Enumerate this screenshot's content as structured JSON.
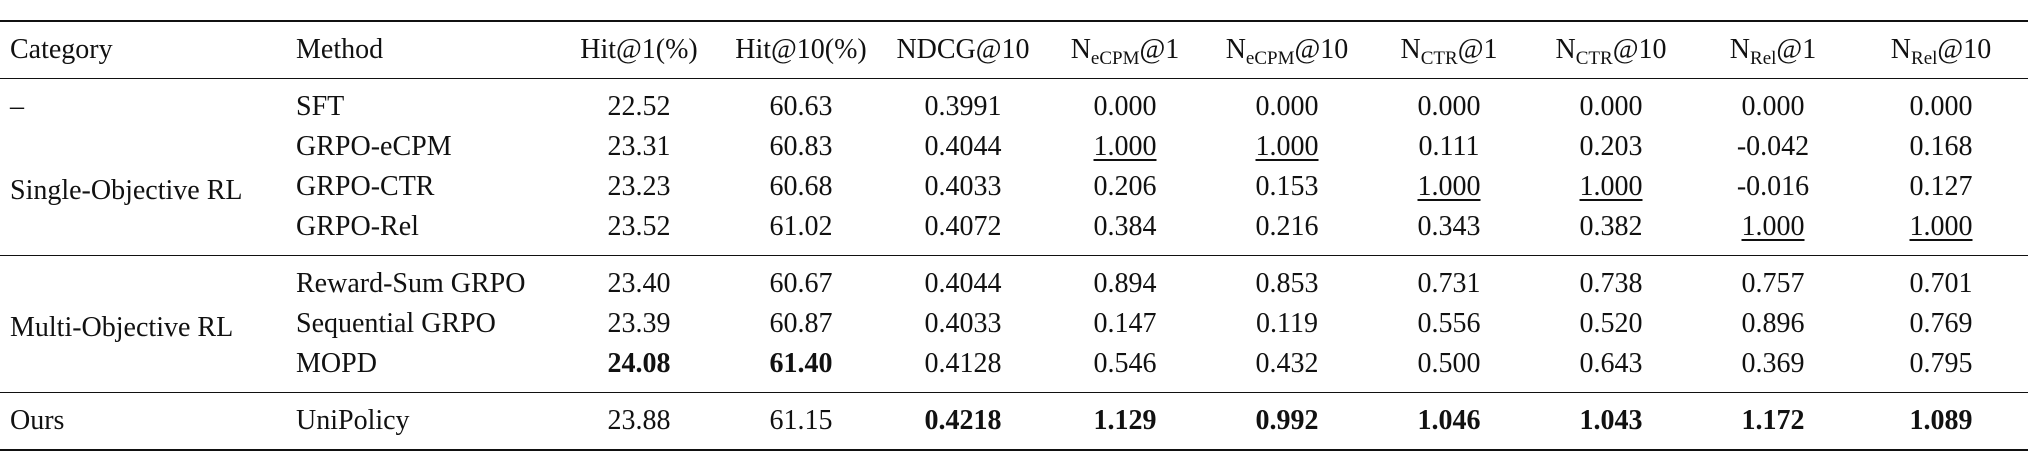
{
  "headers": {
    "category": "Category",
    "method": "Method",
    "hit1": "Hit@1(%)",
    "hit10": "Hit@10(%)",
    "ndcg10": "NDCG@10",
    "n_ecpm1": {
      "base": "N",
      "sub": "eCPM",
      "suffix": "@1"
    },
    "n_ecpm10": {
      "base": "N",
      "sub": "eCPM",
      "suffix": "@10"
    },
    "n_ctr1": {
      "base": "N",
      "sub": "CTR",
      "suffix": "@1"
    },
    "n_ctr10": {
      "base": "N",
      "sub": "CTR",
      "suffix": "@10"
    },
    "n_rel1": {
      "base": "N",
      "sub": "Rel",
      "suffix": "@1"
    },
    "n_rel10": {
      "base": "N",
      "sub": "Rel",
      "suffix": "@10"
    }
  },
  "categories": {
    "none": "–",
    "single": "Single-Objective RL",
    "multi": "Multi-Objective RL",
    "ours": "Ours"
  },
  "rows": [
    {
      "method": "SFT",
      "values": [
        "22.52",
        "60.63",
        "0.3991",
        "0.000",
        "0.000",
        "0.000",
        "0.000",
        "0.000",
        "0.000"
      ]
    },
    {
      "method": "GRPO-eCPM",
      "values": [
        "23.31",
        "60.83",
        "0.4044",
        "1.000",
        "1.000",
        "0.111",
        "0.203",
        "-0.042",
        "0.168"
      ]
    },
    {
      "method": "GRPO-CTR",
      "values": [
        "23.23",
        "60.68",
        "0.4033",
        "0.206",
        "0.153",
        "1.000",
        "1.000",
        "-0.016",
        "0.127"
      ]
    },
    {
      "method": "GRPO-Rel",
      "values": [
        "23.52",
        "61.02",
        "0.4072",
        "0.384",
        "0.216",
        "0.343",
        "0.382",
        "1.000",
        "1.000"
      ]
    },
    {
      "method": "Reward-Sum GRPO",
      "values": [
        "23.40",
        "60.67",
        "0.4044",
        "0.894",
        "0.853",
        "0.731",
        "0.738",
        "0.757",
        "0.701"
      ]
    },
    {
      "method": "Sequential GRPO",
      "values": [
        "23.39",
        "60.87",
        "0.4033",
        "0.147",
        "0.119",
        "0.556",
        "0.520",
        "0.896",
        "0.769"
      ]
    },
    {
      "method": "MOPD",
      "values": [
        "24.08",
        "61.40",
        "0.4128",
        "0.546",
        "0.432",
        "0.500",
        "0.643",
        "0.369",
        "0.795"
      ]
    },
    {
      "method": "UniPolicy",
      "values": [
        "23.88",
        "61.15",
        "0.4218",
        "1.129",
        "0.992",
        "1.046",
        "1.043",
        "1.172",
        "1.089"
      ]
    }
  ]
}
